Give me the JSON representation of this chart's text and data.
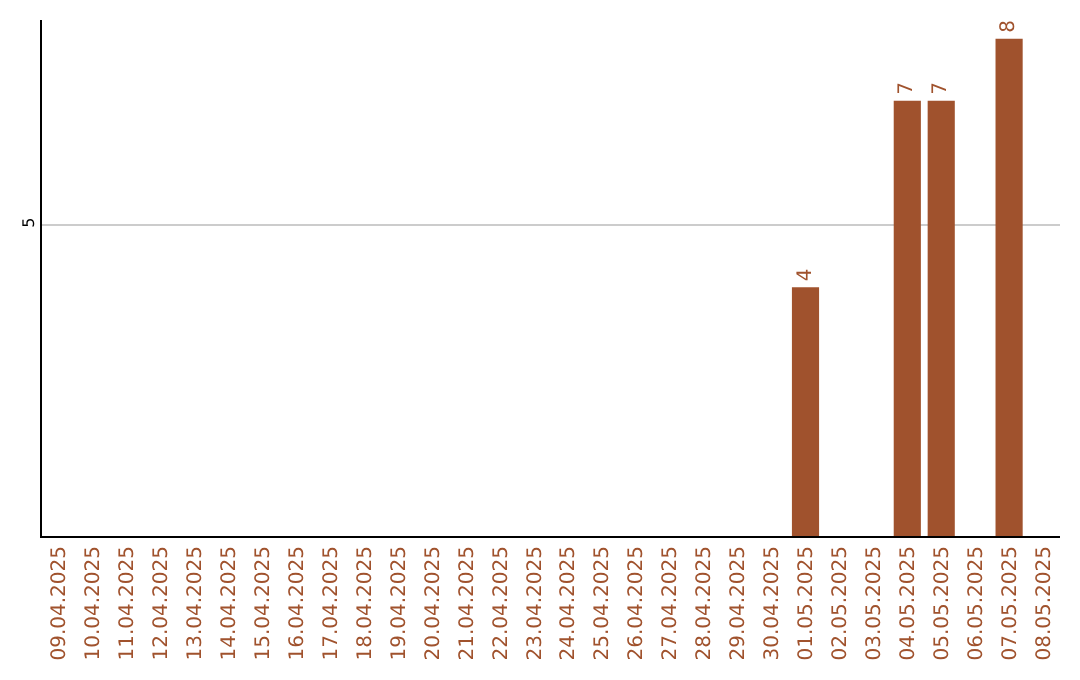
{
  "chart_data": {
    "type": "bar",
    "categories": [
      "09.04.2025",
      "10.04.2025",
      "11.04.2025",
      "12.04.2025",
      "13.04.2025",
      "14.04.2025",
      "15.04.2025",
      "16.04.2025",
      "17.04.2025",
      "18.04.2025",
      "19.04.2025",
      "20.04.2025",
      "21.04.2025",
      "22.04.2025",
      "23.04.2025",
      "24.04.2025",
      "25.04.2025",
      "26.04.2025",
      "27.04.2025",
      "28.04.2025",
      "29.04.2025",
      "30.04.2025",
      "01.05.2025",
      "02.05.2025",
      "03.05.2025",
      "04.05.2025",
      "05.05.2025",
      "06.05.2025",
      "07.05.2025",
      "08.05.2025"
    ],
    "values": [
      null,
      null,
      null,
      null,
      null,
      null,
      null,
      null,
      null,
      null,
      null,
      null,
      null,
      null,
      null,
      null,
      null,
      null,
      null,
      null,
      null,
      null,
      4,
      null,
      null,
      7,
      7,
      null,
      8,
      null
    ],
    "color": "#a0522d",
    "ylim": [
      0,
      8.3
    ],
    "yticks": [
      5
    ],
    "grid": "y",
    "data_labels": true,
    "legend": false
  }
}
